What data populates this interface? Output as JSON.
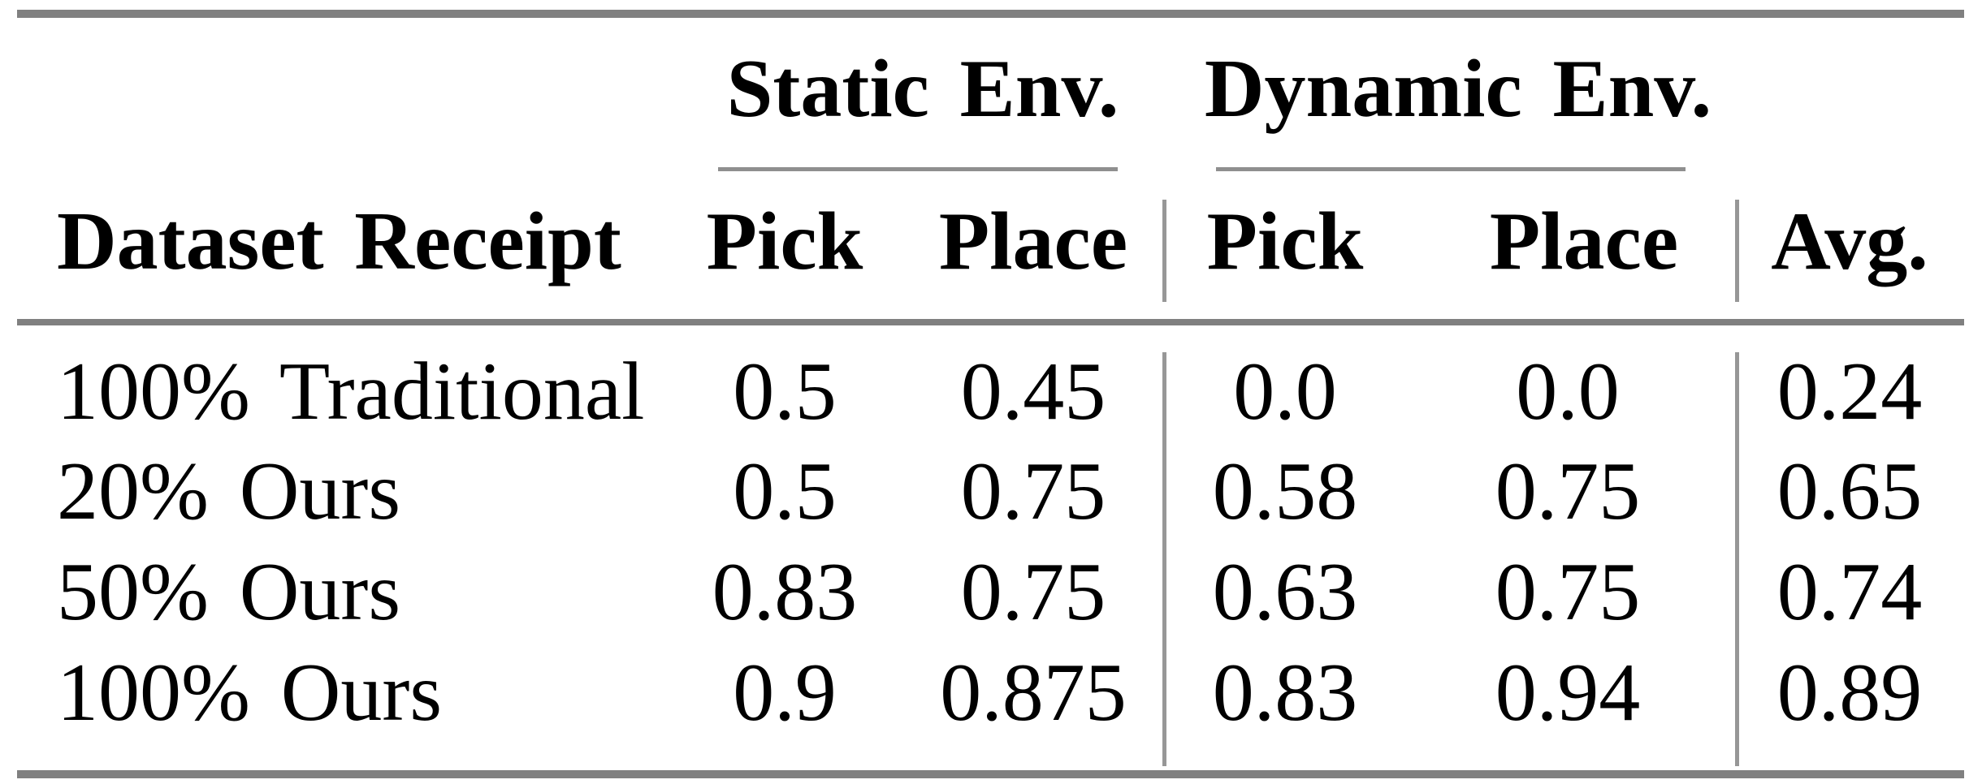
{
  "figure": {
    "type": "results-table",
    "column_groups": [
      {
        "label": "Static Env."
      },
      {
        "label": "Dynamic Env."
      }
    ],
    "headers": {
      "row_header": "Dataset Receipt",
      "cols": [
        "Pick",
        "Place",
        "Pick",
        "Place",
        "Avg."
      ]
    },
    "rows": [
      {
        "cells": [
          "100% Traditional",
          "0.5",
          "0.45",
          "0.0",
          "0.0",
          "0.24"
        ]
      },
      {
        "cells": [
          "20% Ours",
          "0.5",
          "0.75",
          "0.58",
          "0.75",
          "0.65"
        ]
      },
      {
        "cells": [
          "50% Ours",
          "0.83",
          "0.75",
          "0.63",
          "0.75",
          "0.74"
        ]
      },
      {
        "cells": [
          "100% Ours",
          "0.9",
          "0.875",
          "0.83",
          "0.94",
          "0.89"
        ]
      }
    ],
    "colors": {
      "text": "#000000",
      "rule_heavy": "#808080",
      "rule_light": "#8f8f8f"
    }
  },
  "chart_data": {
    "type": "table",
    "columns": [
      "Dataset Receipt",
      "Static Env. Pick",
      "Static Env. Place",
      "Dynamic Env. Pick",
      "Dynamic Env. Place",
      "Avg."
    ],
    "rows": [
      [
        "100% Traditional",
        0.5,
        0.45,
        0.0,
        0.0,
        0.24
      ],
      [
        "20% Ours",
        0.5,
        0.75,
        0.58,
        0.75,
        0.65
      ],
      [
        "50% Ours",
        0.83,
        0.75,
        0.63,
        0.75,
        0.74
      ],
      [
        "100% Ours",
        0.9,
        0.875,
        0.83,
        0.94,
        0.89
      ]
    ]
  }
}
